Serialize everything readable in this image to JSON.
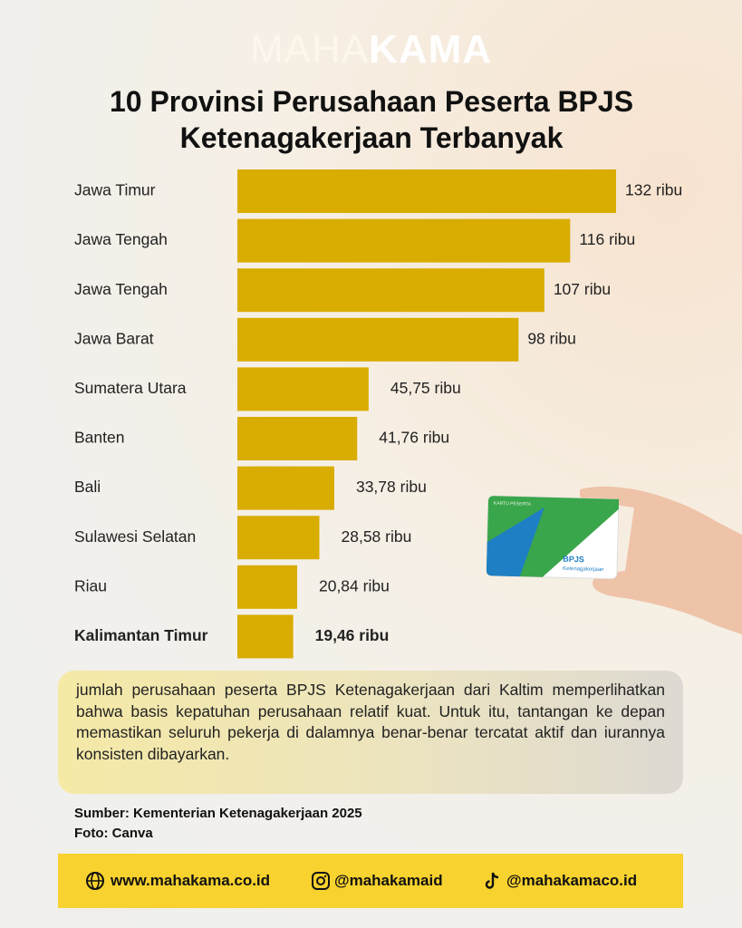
{
  "logo": {
    "light": "MAHA",
    "bold": "KAMA"
  },
  "chart_data": {
    "type": "bar",
    "orientation": "horizontal",
    "title": "10 Provinsi Perusahaan Peserta BPJS Ketenagakerjaan Terbanyak",
    "categories": [
      "Jawa Timur",
      "Jawa Tengah",
      "Jawa Tengah",
      "Jawa Barat",
      "Sumatera Utara",
      "Banten",
      "Bali",
      "Sulawesi Selatan",
      "Riau",
      "Kalimantan Timur"
    ],
    "values": [
      132,
      116,
      107,
      98,
      45.75,
      41.76,
      33.78,
      28.58,
      20.84,
      19.46
    ],
    "value_labels": [
      "132 ribu",
      "116 ribu",
      "107 ribu",
      "98 ribu",
      "45,75 ribu",
      "41,76 ribu",
      "33,78 ribu",
      "28,58 ribu",
      "20,84 ribu",
      "19,46 ribu"
    ],
    "color": "#d9ac00",
    "highlight_index": 9
  },
  "card": {
    "label": "KARTU PESERTA",
    "brand": "BPJS",
    "brand_sub": "Ketenagakerjaan"
  },
  "paragraph": "jumlah perusahaan peserta BPJS Ketenagakerjaan dari Kaltim memperlihatkan bahwa basis kepatuhan perusahaan relatif kuat. Untuk itu, tantangan ke depan memastikan seluruh pekerja di dalamnya benar-benar tercatat aktif dan iurannya konsisten dibayarkan.",
  "source": "Sumber: Kementerian Ketenagakerjaan 2025",
  "photo": "Foto: Canva",
  "footer": {
    "website": "www.mahakama.co.id",
    "instagram": "@mahakamaid",
    "tiktok": "@mahakamaco.id"
  }
}
